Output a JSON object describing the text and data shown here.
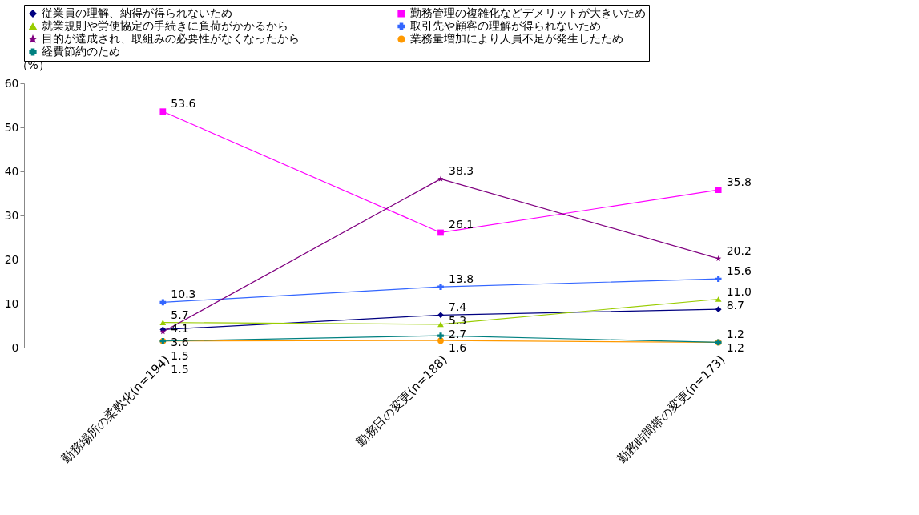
{
  "chart_data": {
    "type": "line",
    "ylabel": "（%）",
    "categories": [
      "勤務場所の柔軟化(n=194)",
      "勤務日の変更(n=188)",
      "勤務時間帯の変更(n=173)"
    ],
    "ylim": [
      0,
      60
    ],
    "yticks": [
      0,
      10,
      20,
      30,
      40,
      50,
      60
    ],
    "grid": false,
    "legend": "top",
    "line_style": "solid",
    "series": [
      {
        "name": "従業員の理解、納得が得られないため",
        "color": "#000080",
        "marker": "diamond",
        "values": [
          4.1,
          7.4,
          8.7
        ],
        "value_labels": [
          "4.1",
          "7.4",
          "8.7"
        ]
      },
      {
        "name": "勤務管理の複雑化などデメリットが大きいため",
        "color": "#ff00ff",
        "marker": "square",
        "values": [
          53.6,
          26.1,
          35.8
        ],
        "value_labels": [
          "53.6",
          "26.1",
          "35.8"
        ]
      },
      {
        "name": "就業規則や労使協定の手続きに負荷がかかるから",
        "color": "#99cc00",
        "marker": "triangle",
        "values": [
          5.7,
          5.3,
          11.0
        ],
        "value_labels": [
          "5.7",
          "5.3",
          "11.0"
        ]
      },
      {
        "name": "取引先や顧客の理解が得られないため",
        "color": "#3366ff",
        "marker": "cross",
        "values": [
          10.3,
          13.8,
          15.6
        ],
        "value_labels": [
          "10.3",
          "13.8",
          "15.6"
        ]
      },
      {
        "name": "目的が達成され、取組みの必要性がなくなったから",
        "color": "#800080",
        "marker": "star",
        "values": [
          3.6,
          38.3,
          20.2
        ],
        "value_labels": [
          "3.6",
          "38.3",
          "20.2"
        ]
      },
      {
        "name": "業務量増加により人員不足が発生したため",
        "color": "#ff9900",
        "marker": "circle",
        "values": [
          1.5,
          1.6,
          1.2
        ],
        "value_labels": [
          "1.5",
          "1.6",
          "1.2"
        ]
      },
      {
        "name": "経費節約のため",
        "color": "#008080",
        "marker": "cross",
        "values": [
          1.5,
          2.7,
          1.2
        ],
        "value_labels": [
          "1.5",
          "2.7",
          "1.2"
        ]
      }
    ]
  }
}
